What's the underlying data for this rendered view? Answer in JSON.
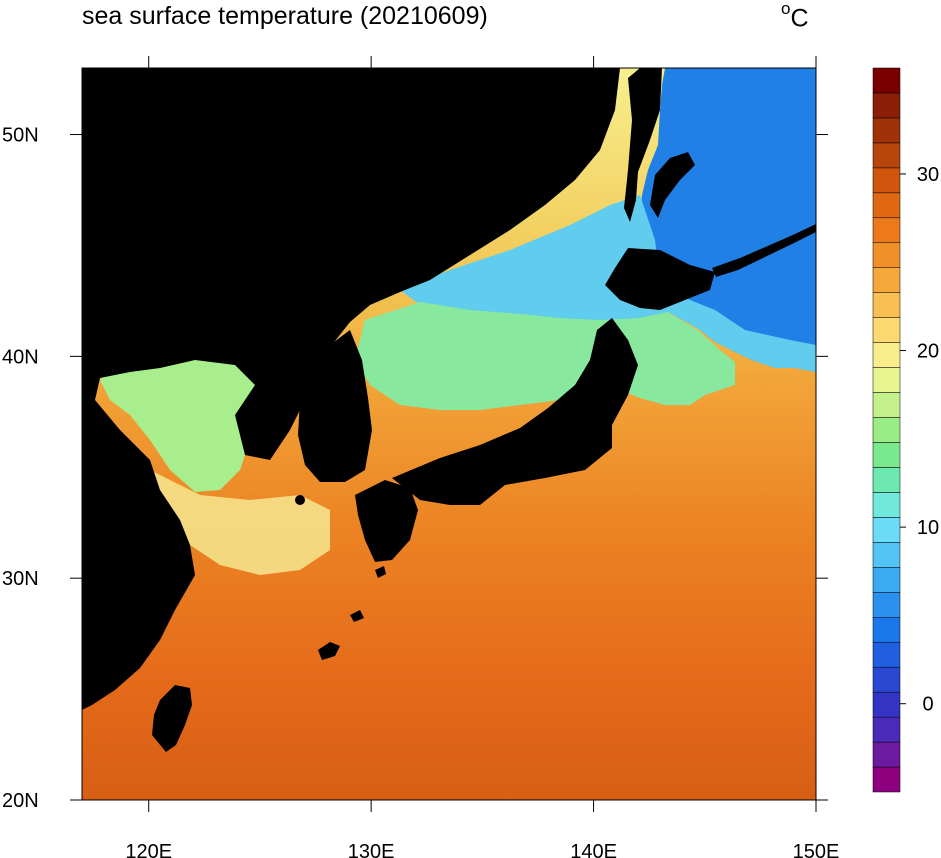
{
  "title": "sea surface temperature (20210609)",
  "unit": {
    "degree_symbol": "o",
    "letter": "C"
  },
  "map": {
    "lon_range": [
      117,
      150
    ],
    "lat_range": [
      20,
      53
    ],
    "lon_ticks": [
      120,
      130,
      140,
      150
    ],
    "lon_tick_labels": [
      "120E",
      "130E",
      "140E",
      "150E"
    ],
    "lat_ticks": [
      20,
      30,
      40,
      50
    ],
    "lat_tick_labels": [
      "20N",
      "30N",
      "40N",
      "50N"
    ],
    "land_color": "#000000",
    "colormap": [
      "#8e0080",
      "#6c1aa0",
      "#4a2ab8",
      "#3434c4",
      "#2a48d2",
      "#2060e0",
      "#1a78ea",
      "#2a92ee",
      "#3caaf0",
      "#54c4f4",
      "#6cdcf6",
      "#70e8dc",
      "#6ce8b0",
      "#7ae88c",
      "#9aec84",
      "#c4f08c",
      "#e8f490",
      "#f8ec8c",
      "#fcd870",
      "#f8c054",
      "#f4a83c",
      "#f09028",
      "#ec7a1a",
      "#e06812",
      "#d0560e",
      "#b8460c",
      "#a03208",
      "#8a1e06",
      "#7a0000"
    ]
  },
  "colorbar": {
    "range": [
      -5,
      36
    ],
    "tick_values": [
      0,
      10,
      20,
      30
    ],
    "tick_labels": [
      "0",
      "10",
      "20",
      "30"
    ]
  }
}
